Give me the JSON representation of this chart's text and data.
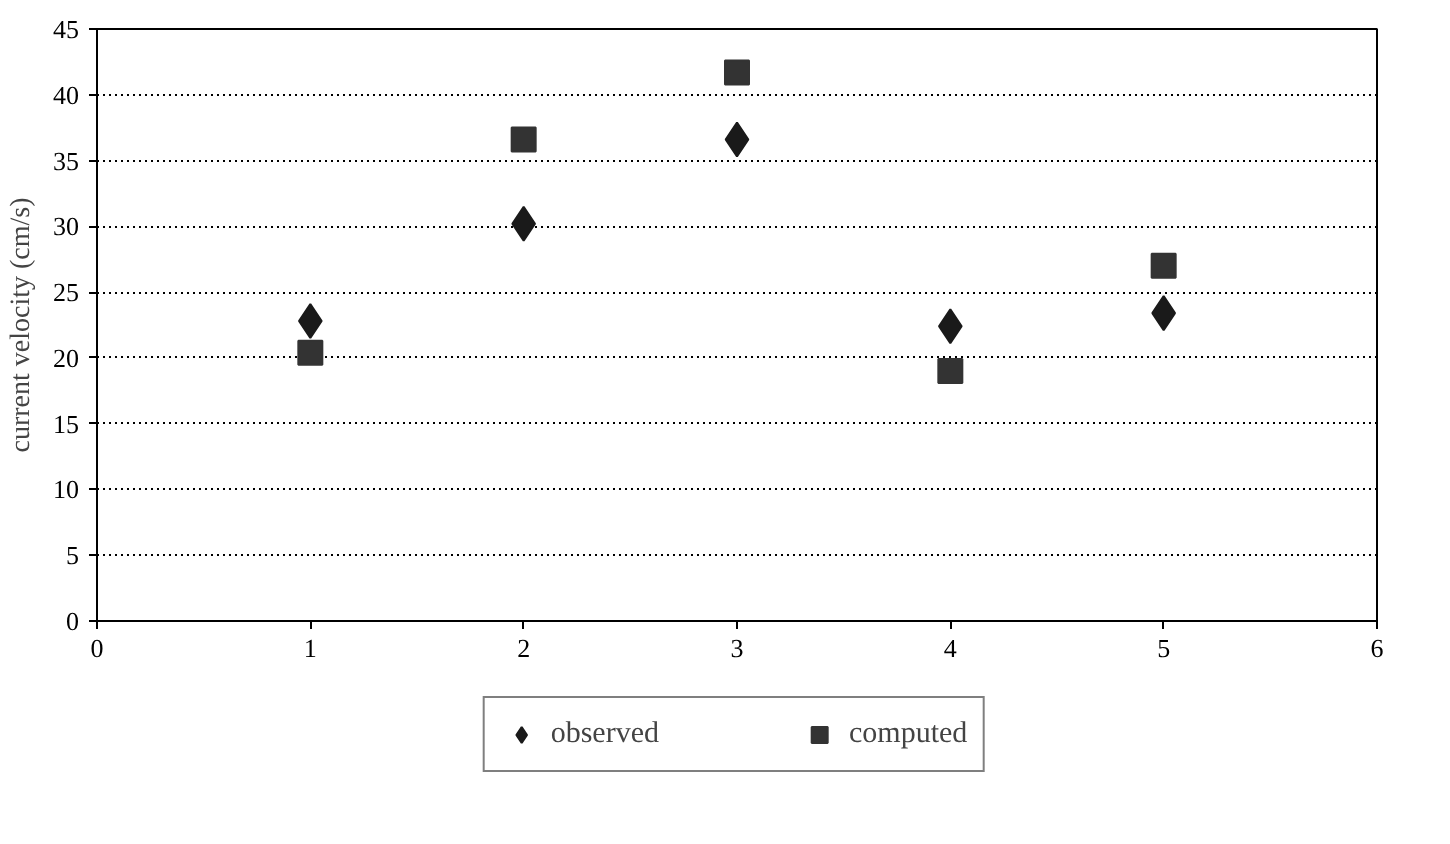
{
  "chart_data": {
    "type": "scatter",
    "ylabel": "current velocity (cm/s)",
    "x": [
      1,
      2,
      3,
      4,
      5
    ],
    "series": [
      {
        "name": "observed",
        "color": "#1a1a1a",
        "marker": "diamond",
        "values": [
          22.8,
          30.2,
          36.6,
          22.4,
          23.4
        ]
      },
      {
        "name": "computed",
        "color": "#333333",
        "marker": "square",
        "values": [
          20.4,
          36.6,
          41.7,
          19.0,
          27.0
        ]
      }
    ],
    "xlim": [
      0,
      6
    ],
    "xticks": [
      0,
      1,
      2,
      3,
      4,
      5,
      6
    ],
    "ylim": [
      0,
      45
    ],
    "yticks": [
      0,
      5,
      10,
      15,
      20,
      25,
      30,
      35,
      40,
      45
    ],
    "grid": "y",
    "legend": "bottom"
  }
}
